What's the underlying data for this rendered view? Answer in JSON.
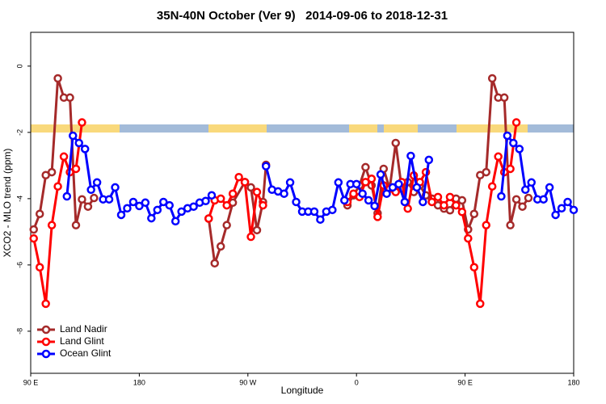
{
  "chart_data": {
    "type": "line",
    "title": "35N-40N October (Ver 9)   2014-09-06 to 2018-12-31",
    "x_label": "Longitude",
    "y_label": "XCO2 - MLO trend (ppm)",
    "xlim": [
      90,
      540
    ],
    "xticks": [
      {
        "value": 90,
        "label": "90 E"
      },
      {
        "value": 180,
        "label": "180"
      },
      {
        "value": 270,
        "label": "90 W"
      },
      {
        "value": 360,
        "label": "0"
      },
      {
        "value": 450,
        "label": "90 E"
      },
      {
        "value": 540,
        "label": "180"
      }
    ],
    "ylim": [
      -9.27,
      1.02
    ],
    "yticks": [
      0,
      -2,
      -4,
      -6,
      -8
    ],
    "legend": "bottomleft",
    "series": [
      {
        "name": "Land Nadir",
        "color": "#a52a2a",
        "x": [
          92.5,
          97.5,
          102.5,
          107.5,
          112.5,
          117.5,
          122.5,
          127.5,
          132.5,
          137.5,
          142.5,
          null,
          237.5,
          242.5,
          247.5,
          252.5,
          257.5,
          267.5,
          272.5,
          277.5,
          282.5,
          285,
          null,
          352.5,
          357.5,
          362.5,
          367.5,
          372.5,
          377.5,
          382.5,
          387.5,
          392.5,
          397.5,
          402.5,
          407.5,
          412.5,
          417.5,
          422.5,
          427.5,
          432.5,
          437.5,
          442.5,
          447.5,
          452.5,
          457.5,
          462.5,
          467.5,
          472.5,
          477.5,
          482.5,
          487.5,
          492.5,
          497.5,
          502.5
        ],
        "values": [
          -4.93,
          -4.46,
          -3.29,
          -3.2,
          -0.37,
          -0.95,
          -0.95,
          -4.8,
          -4.02,
          -4.24,
          -3.98,
          null,
          -4.6,
          -5.95,
          -5.44,
          -4.8,
          -4.12,
          -3.5,
          -3.66,
          -4.95,
          -4.1,
          -2.98,
          null,
          -4.2,
          -3.9,
          -3.6,
          -3.05,
          -3.6,
          -4.44,
          -3.1,
          -3.7,
          -2.32,
          -3.7,
          -3.5,
          -3.8,
          -3.6,
          -3.9,
          -4.0,
          -4.2,
          -4.3,
          -4.35,
          -4.0,
          -4.05,
          -4.93,
          -4.46,
          -3.29,
          -3.2,
          -0.37,
          -0.95,
          -0.95,
          -4.8,
          -4.02,
          -4.24,
          -3.98
        ]
      },
      {
        "name": "Land Glint",
        "color": "#ff0000",
        "x": [
          92.5,
          97.5,
          102.5,
          107.5,
          112.5,
          117.5,
          122.5,
          127.5,
          132.5,
          null,
          237.5,
          242.5,
          247.5,
          252.5,
          257.5,
          262.5,
          267.5,
          272.5,
          277.5,
          282.5,
          null,
          352.5,
          357.5,
          362.5,
          367.5,
          372.5,
          377.5,
          382.5,
          387.5,
          392.5,
          397.5,
          402.5,
          407.5,
          412.5,
          417.5,
          422.5,
          427.5,
          432.5,
          437.5,
          442.5,
          447.5,
          452.5,
          457.5,
          462.5,
          467.5,
          472.5,
          477.5,
          482.5,
          487.5,
          492.5
        ],
        "values": [
          -5.2,
          -6.07,
          -7.17,
          -4.8,
          -3.63,
          -2.73,
          -3.2,
          -3.1,
          -1.7,
          null,
          -4.6,
          -4.05,
          -4.0,
          -4.2,
          -3.85,
          -3.35,
          -3.5,
          -5.15,
          -3.8,
          -4.2,
          null,
          -4.1,
          -3.85,
          -3.95,
          -3.5,
          -3.4,
          -4.55,
          -3.6,
          -3.7,
          -3.8,
          -3.5,
          -4.3,
          -3.3,
          -3.5,
          -3.2,
          -4.1,
          -3.95,
          -4.2,
          -3.95,
          -4.2,
          -4.4,
          -5.2,
          -6.07,
          -7.17,
          -4.8,
          -3.63,
          -2.73,
          -3.2,
          -3.1,
          -1.7
        ]
      },
      {
        "name": "Ocean Glint",
        "color": "#0000ff",
        "x": [
          120,
          125,
          130,
          135,
          140,
          145,
          150,
          155,
          160,
          165,
          170,
          175,
          180,
          185,
          190,
          195,
          200,
          205,
          210,
          215,
          220,
          225,
          230,
          235,
          240,
          null,
          285,
          290,
          295,
          300,
          305,
          310,
          315,
          320,
          325,
          330,
          335,
          340,
          345,
          350,
          355,
          360,
          365,
          370,
          375,
          380,
          385,
          390,
          395,
          400,
          405,
          410,
          415,
          420,
          null,
          480,
          485,
          490,
          495,
          500,
          505,
          510,
          515,
          520,
          525,
          530,
          535,
          540
        ],
        "values": [
          -3.93,
          -2.1,
          -2.32,
          -2.5,
          -3.73,
          -3.51,
          -4.02,
          -4.02,
          -3.66,
          -4.49,
          -4.29,
          -4.1,
          -4.22,
          -4.12,
          -4.59,
          -4.34,
          -4.1,
          -4.2,
          -4.68,
          -4.39,
          -4.29,
          -4.24,
          -4.12,
          -4.07,
          -3.9,
          null,
          -3.02,
          -3.73,
          -3.78,
          -3.85,
          -3.51,
          -4.1,
          -4.39,
          -4.39,
          -4.39,
          -4.63,
          -4.39,
          -4.34,
          -3.51,
          -4.05,
          -3.56,
          -3.56,
          -3.85,
          -4.05,
          -4.22,
          -3.27,
          -3.85,
          -3.66,
          -3.56,
          -4.1,
          -2.71,
          -3.66,
          -4.1,
          -2.83,
          null,
          -3.93,
          -2.1,
          -2.32,
          -2.5,
          -3.73,
          -3.51,
          -4.02,
          -4.02,
          -3.66,
          -4.49,
          -4.29,
          -4.1,
          -4.34
        ]
      }
    ]
  }
}
